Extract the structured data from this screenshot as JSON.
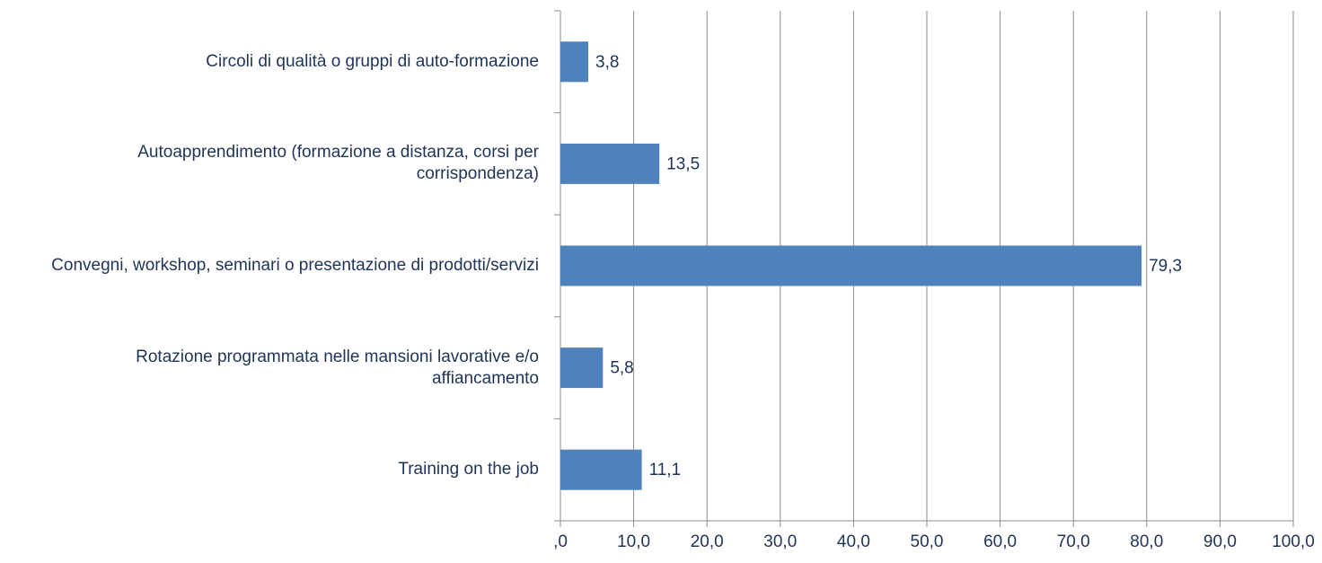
{
  "chart_data": {
    "type": "bar",
    "orientation": "horizontal",
    "categories": [
      "Circoli di qualità o gruppi di auto-formazione",
      "Autoapprendimento (formazione a distanza, corsi per corrispondenza)",
      "Convegni, workshop, seminari o presentazione di prodotti/servizi",
      "Rotazione programmata nelle mansioni lavorative e/o affiancamento",
      "Training on the job"
    ],
    "values": [
      3.8,
      13.5,
      79.3,
      5.8,
      11.1
    ],
    "value_labels": [
      "3,8",
      "13,5",
      "79,3",
      "5,8",
      "11,1"
    ],
    "color": "#4f81bd",
    "xlim": [
      0,
      100
    ],
    "xticks": [
      {
        "value": 0,
        "label": ",0"
      },
      {
        "value": 10,
        "label": "10,0"
      },
      {
        "value": 20,
        "label": "20,0"
      },
      {
        "value": 30,
        "label": "30,0"
      },
      {
        "value": 40,
        "label": "40,0"
      },
      {
        "value": 50,
        "label": "50,0"
      },
      {
        "value": 60,
        "label": "60,0"
      },
      {
        "value": 70,
        "label": "70,0"
      },
      {
        "value": 80,
        "label": "80,0"
      },
      {
        "value": 90,
        "label": "90,0"
      },
      {
        "value": 100,
        "label": "100,0"
      }
    ],
    "grid": true
  }
}
